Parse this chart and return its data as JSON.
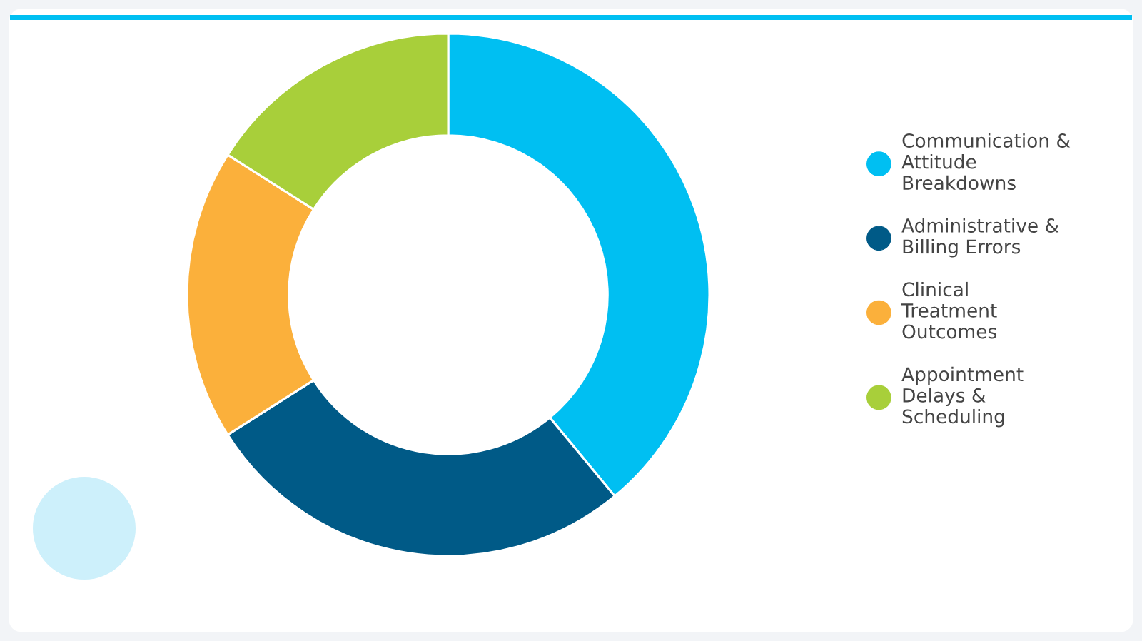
{
  "chart_data": {
    "type": "donut",
    "categories": [
      "Communication & Attitude Breakdowns",
      "Administrative & Billing Errors",
      "Clinical Treatment Outcomes",
      "Appointment Delays & Scheduling"
    ],
    "values": [
      39,
      27,
      18,
      16
    ],
    "colors": [
      "#00bff2",
      "#005a87",
      "#fbb03b",
      "#a8cf3a"
    ],
    "legend": "right"
  }
}
